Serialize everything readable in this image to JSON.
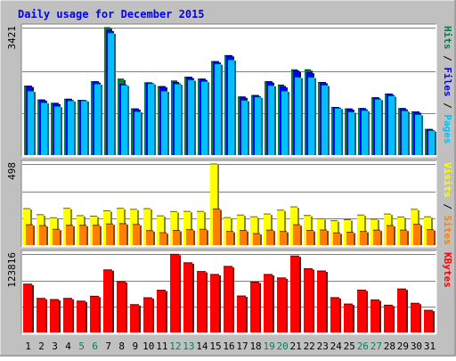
{
  "chart_data": {
    "type": "bar",
    "title": "Daily usage for December 2015",
    "categories": [
      "1",
      "2",
      "3",
      "4",
      "5",
      "6",
      "7",
      "8",
      "9",
      "10",
      "11",
      "12",
      "13",
      "14",
      "15",
      "16",
      "17",
      "18",
      "19",
      "20",
      "21",
      "22",
      "23",
      "24",
      "25",
      "26",
      "27",
      "28",
      "29",
      "30",
      "31"
    ],
    "weekend_days": [
      "5",
      "6",
      "12",
      "13",
      "19",
      "20",
      "26",
      "27"
    ],
    "colors": {
      "title": "#0000ff",
      "hits": "#008040",
      "files": "#0000ff",
      "pages": "#00c0ff",
      "visits": "#ffff00",
      "sites": "#ff8000",
      "kbytes": "#ff0000",
      "weekday_label": "#000000",
      "weekend_label": "#00805c",
      "frame": "#c0c0c0",
      "plot_bg": "#ffffff"
    },
    "panels": [
      {
        "id": "usage",
        "ymax_label": "3421",
        "ylim": [
          0,
          3421
        ],
        "right_label": [
          {
            "text": "Pages",
            "color": "#00c0ff"
          },
          {
            "text": " / ",
            "color": "#000000"
          },
          {
            "text": "Files",
            "color": "#0000ff"
          },
          {
            "text": " / ",
            "color": "#000000"
          },
          {
            "text": "Hits",
            "color": "#008040"
          }
        ],
        "series": [
          {
            "name": "Hits",
            "color": "#008040",
            "values": [
              1850,
              1480,
              1390,
              1500,
              1470,
              1970,
              3420,
              2040,
              1240,
              1940,
              1840,
              1990,
              2090,
              2040,
              2510,
              2670,
              1560,
              1600,
              1970,
              1880,
              2290,
              2290,
              1950,
              1280,
              1240,
              1250,
              1540,
              1640,
              1250,
              1160,
              690
            ]
          },
          {
            "name": "Files",
            "color": "#0000ff",
            "values": [
              1850,
              1480,
              1390,
              1500,
              1470,
              1970,
              3350,
              1900,
              1240,
              1940,
              1840,
              1950,
              2090,
              2040,
              2510,
              2670,
              1560,
              1600,
              1970,
              1840,
              2260,
              2220,
              1950,
              1280,
              1240,
              1250,
              1540,
              1640,
              1250,
              1160,
              690
            ]
          },
          {
            "name": "Pages",
            "color": "#00c0ff",
            "values": [
              1720,
              1410,
              1310,
              1460,
              1460,
              1910,
              3280,
              1880,
              1170,
              1920,
              1720,
              1910,
              2020,
              1980,
              2450,
              2560,
              1470,
              1560,
              1870,
              1720,
              2090,
              2090,
              1880,
              1260,
              1160,
              1200,
              1500,
              1590,
              1190,
              1090,
              660
            ]
          }
        ]
      },
      {
        "id": "visits",
        "ymax_label": "498",
        "ylim": [
          0,
          498
        ],
        "right_label": [
          {
            "text": "Sites",
            "color": "#ff8000"
          },
          {
            "text": " / ",
            "color": "#000000"
          },
          {
            "text": "Visits",
            "color": "#ffff00"
          }
        ],
        "series": [
          {
            "name": "Visits",
            "color": "#ffff00",
            "values": [
              224,
              187,
              168,
              226,
              181,
              178,
              211,
              226,
              220,
              224,
              180,
              206,
              207,
              207,
              498,
              169,
              185,
              174,
              191,
              215,
              235,
              182,
              162,
              150,
              156,
              185,
              159,
              191,
              173,
              220,
              174
            ]
          },
          {
            "name": "Sites",
            "color": "#ff8000",
            "values": [
              125,
              120,
              97,
              122,
              122,
              122,
              130,
              132,
              127,
              89,
              76,
              90,
              95,
              97,
              222,
              84,
              90,
              71,
              92,
              84,
              125,
              90,
              93,
              75,
              79,
              84,
              92,
              120,
              92,
              128,
              95
            ]
          }
        ]
      },
      {
        "id": "kbytes",
        "ymax_label": "123816",
        "ylim": [
          0,
          123816
        ],
        "right_label": [
          {
            "text": "KBytes",
            "color": "#ff0000"
          }
        ],
        "series": [
          {
            "name": "KBytes",
            "color": "#ff0000",
            "values": [
              76300,
              53800,
              52000,
              53800,
              49500,
              57200,
              98800,
              80300,
              44000,
              54800,
              66700,
              123400,
              110000,
              96200,
              91600,
              104300,
              57600,
              79500,
              91600,
              86100,
              120700,
              100700,
              97100,
              55000,
              44900,
              66900,
              51300,
              43100,
              68700,
              46100,
              35000
            ]
          }
        ]
      }
    ]
  }
}
